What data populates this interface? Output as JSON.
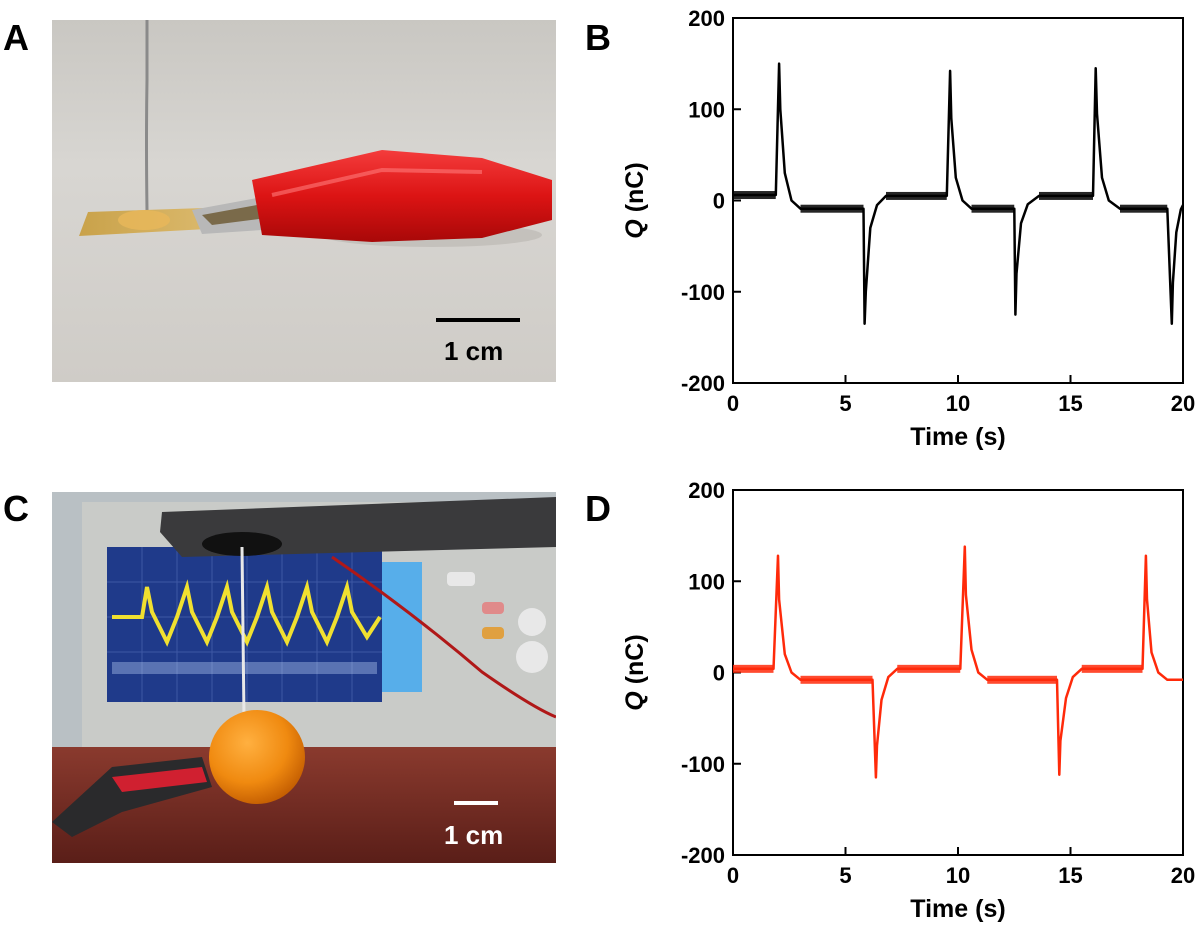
{
  "panels": {
    "a": {
      "label": "A",
      "scale_label": "1 cm"
    },
    "b": {
      "label": "B"
    },
    "c": {
      "label": "C",
      "scale_label": "1 cm"
    },
    "d": {
      "label": "D"
    }
  },
  "colors": {
    "series_b": "#000000",
    "series_d": "#ff2a0a"
  },
  "chart_data": [
    {
      "panel": "B",
      "type": "line",
      "xlabel": "Time (s)",
      "ylabel_italic": "Q",
      "ylabel_rest": " (nC)",
      "xlim": [
        0,
        20
      ],
      "ylim": [
        -200,
        200
      ],
      "xticks": [
        0,
        5,
        10,
        15,
        20
      ],
      "yticks": [
        200,
        100,
        0,
        -100,
        -200
      ],
      "grid": false,
      "series": [
        {
          "color": "#000000",
          "x": [
            0,
            1.9,
            2.05,
            2.1,
            2.3,
            2.6,
            3.0,
            5.8,
            5.85,
            5.9,
            6.1,
            6.4,
            6.8,
            9.5,
            9.65,
            9.7,
            9.9,
            10.2,
            10.6,
            12.5,
            12.55,
            12.6,
            12.8,
            13.1,
            13.6,
            16.0,
            16.12,
            16.18,
            16.4,
            16.7,
            17.2,
            19.3,
            19.5,
            19.55,
            19.7,
            19.9,
            20.0
          ],
          "y": [
            6,
            6,
            150,
            100,
            30,
            0,
            -9,
            -9,
            -135,
            -100,
            -30,
            -5,
            5,
            5,
            142,
            90,
            25,
            0,
            -9,
            -9,
            -125,
            -80,
            -25,
            -4,
            5,
            5,
            145,
            95,
            25,
            0,
            -9,
            -9,
            -135,
            -90,
            -35,
            -10,
            -5
          ]
        }
      ]
    },
    {
      "panel": "D",
      "type": "line",
      "xlabel": "Time (s)",
      "ylabel_italic": "Q",
      "ylabel_rest": " (nC)",
      "xlim": [
        0,
        20
      ],
      "ylim": [
        -200,
        200
      ],
      "xticks": [
        0,
        5,
        10,
        15,
        20
      ],
      "yticks": [
        200,
        100,
        0,
        -100,
        -200
      ],
      "grid": false,
      "series": [
        {
          "color": "#ff2a0a",
          "x": [
            0,
            1.8,
            2.0,
            2.05,
            2.3,
            2.6,
            3.0,
            6.2,
            6.35,
            6.4,
            6.6,
            6.9,
            7.3,
            10.1,
            10.3,
            10.35,
            10.6,
            10.9,
            11.3,
            14.4,
            14.5,
            14.55,
            14.8,
            15.1,
            15.5,
            18.2,
            18.35,
            18.4,
            18.6,
            18.9,
            19.3,
            20.0
          ],
          "y": [
            4,
            4,
            128,
            80,
            20,
            0,
            -8,
            -8,
            -115,
            -80,
            -30,
            -5,
            4,
            4,
            138,
            85,
            25,
            0,
            -8,
            -8,
            -112,
            -75,
            -28,
            -5,
            4,
            4,
            128,
            80,
            22,
            0,
            -8,
            -8
          ]
        }
      ]
    }
  ]
}
